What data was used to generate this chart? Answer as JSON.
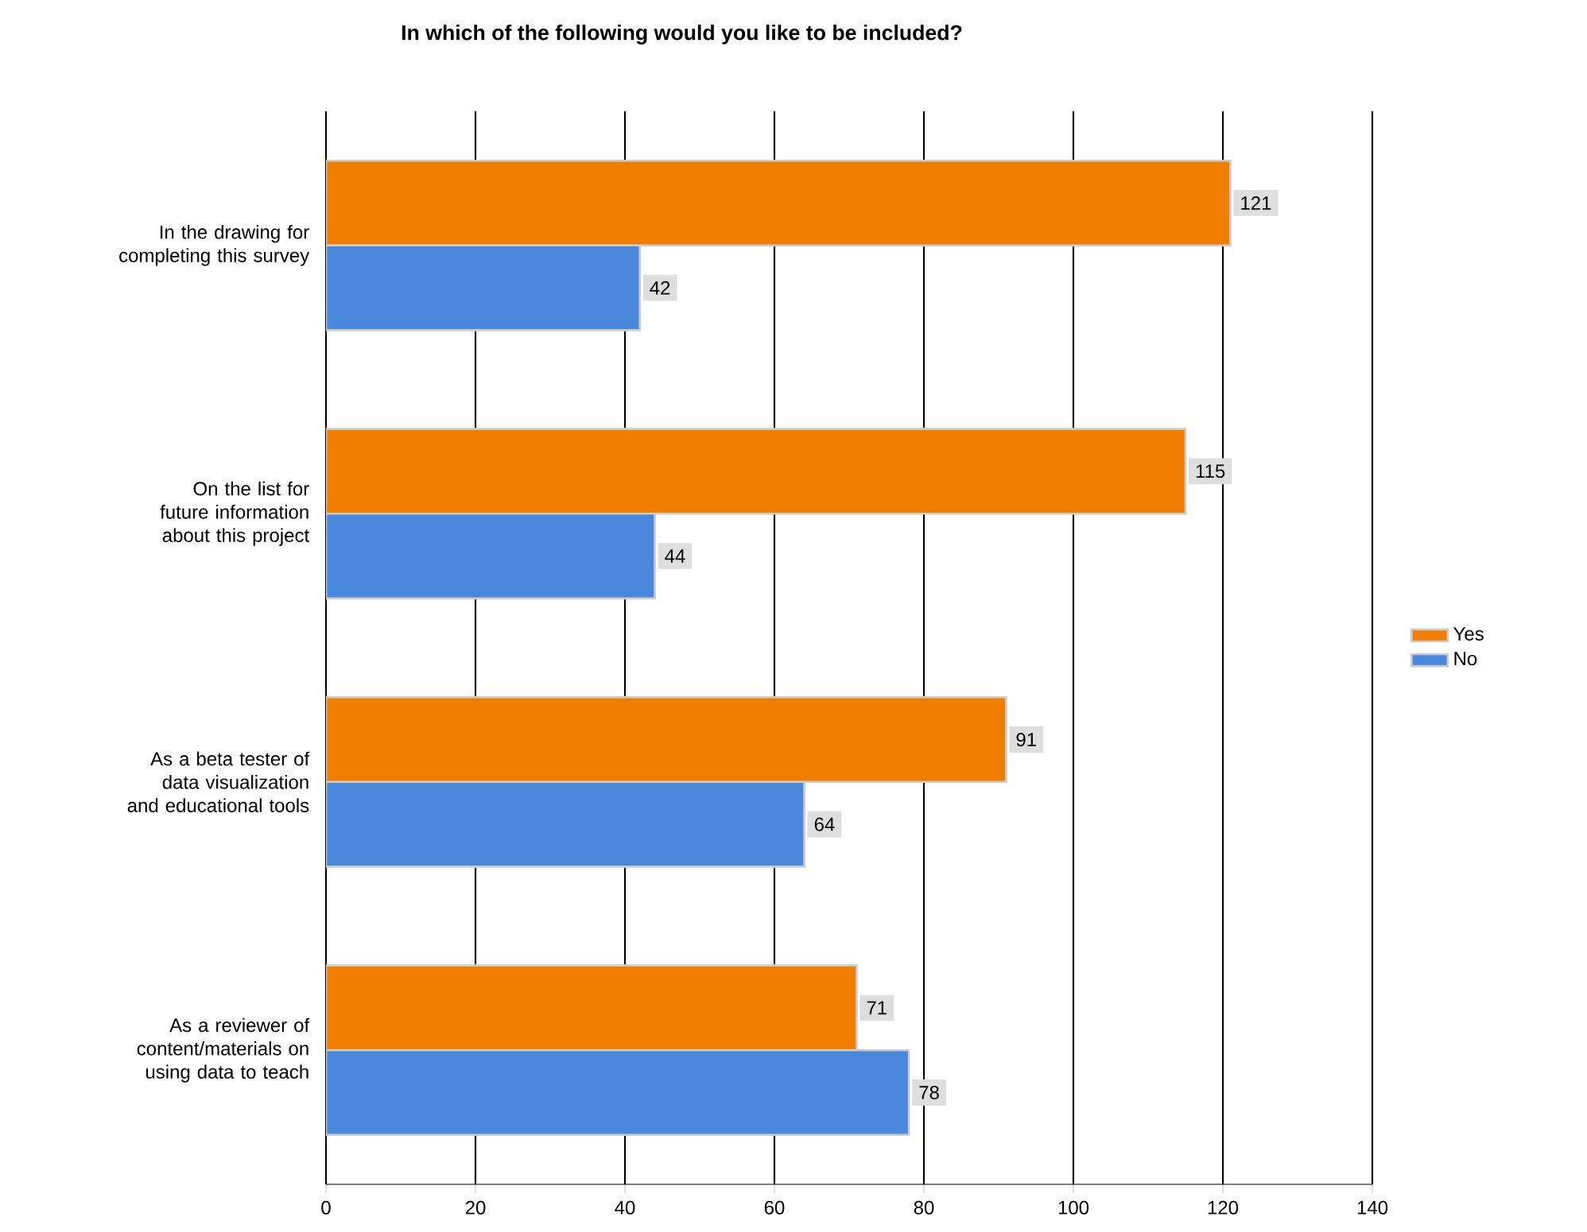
{
  "chart_data": {
    "type": "bar",
    "orientation": "horizontal",
    "title": "In which of the following would you like to be included?",
    "categories": [
      "In the drawing for completing this survey",
      "On the list for future information about this project",
      "As a beta tester of data visualization and educational tools",
      "As a reviewer of content/materials on using data to teach"
    ],
    "series": [
      {
        "name": "Yes",
        "color": "#f07e00",
        "values": [
          121,
          115,
          91,
          71
        ]
      },
      {
        "name": "No",
        "color": "#4a88dc",
        "values": [
          42,
          44,
          64,
          78
        ]
      }
    ],
    "xlim": [
      0,
      140
    ],
    "xticks": [
      0,
      20,
      40,
      60,
      80,
      100,
      120,
      140
    ],
    "grid": "x",
    "legend": "right",
    "data_labels": true
  }
}
